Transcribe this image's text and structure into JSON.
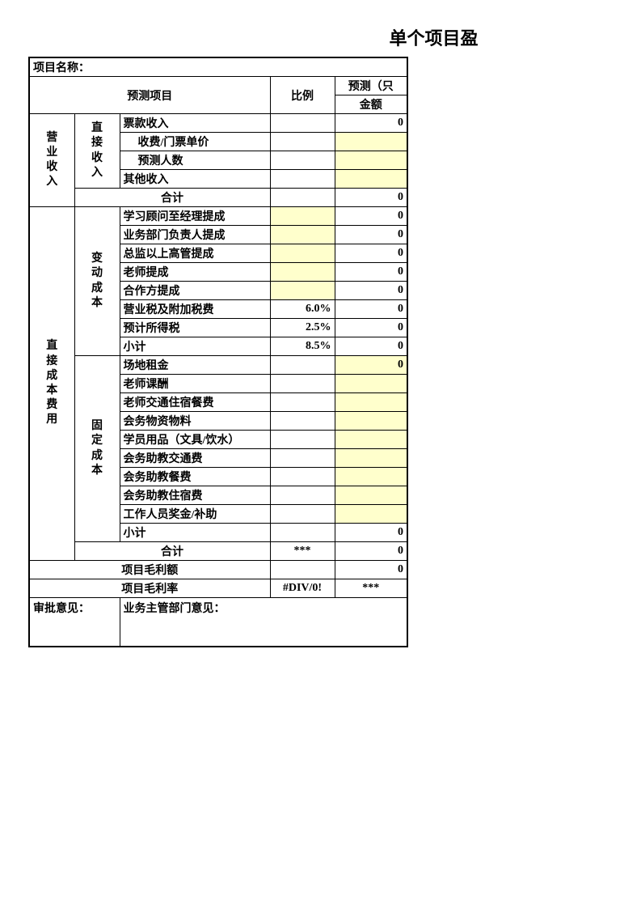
{
  "title": "单个项目盈",
  "project_name_label": "项目名称：",
  "header": {
    "forecast_item": "预测项目",
    "ratio": "比例",
    "forecast_only": "预测（只",
    "amount": "金额"
  },
  "revenue": {
    "section": "营业收入",
    "subsection": "直接收入",
    "rows": [
      {
        "label": "票款收入",
        "ratio": "",
        "amount": "0",
        "yellow_amount": false
      },
      {
        "label": "收费/门票单价",
        "ratio": "",
        "amount": "",
        "yellow_amount": true,
        "indent": true
      },
      {
        "label": "预测人数",
        "ratio": "",
        "amount": "",
        "yellow_amount": true,
        "indent": true
      },
      {
        "label": "其他收入",
        "ratio": "",
        "amount": "",
        "yellow_amount": true
      }
    ],
    "subtotal": {
      "label": "合计",
      "ratio": "",
      "amount": "0"
    }
  },
  "cost": {
    "section": "直接成本费用",
    "variable": {
      "subsection": "变动成本",
      "rows": [
        {
          "label": "学习顾问至经理提成",
          "ratio": "",
          "amount": "0",
          "yellow_ratio": true
        },
        {
          "label": "业务部门负责人提成",
          "ratio": "",
          "amount": "0",
          "yellow_ratio": true
        },
        {
          "label": "总监以上高管提成",
          "ratio": "",
          "amount": "0",
          "yellow_ratio": true
        },
        {
          "label": "老师提成",
          "ratio": "",
          "amount": "0",
          "yellow_ratio": true
        },
        {
          "label": "合作方提成",
          "ratio": "",
          "amount": "0",
          "yellow_ratio": true
        },
        {
          "label": "营业税及附加税费",
          "ratio": "6.0%",
          "amount": "0"
        },
        {
          "label": "预计所得税",
          "ratio": "2.5%",
          "amount": "0"
        }
      ],
      "subtotal": {
        "label": "小计",
        "ratio": "8.5%",
        "amount": "0"
      }
    },
    "fixed": {
      "subsection": "固定成本",
      "rows": [
        {
          "label": "场地租金",
          "ratio": "",
          "amount": "0",
          "yellow_amount": true
        },
        {
          "label": "老师课酬",
          "ratio": "",
          "amount": "",
          "yellow_amount": true
        },
        {
          "label": "老师交通住宿餐费",
          "ratio": "",
          "amount": "",
          "yellow_amount": true
        },
        {
          "label": "会务物资物料",
          "ratio": "",
          "amount": "",
          "yellow_amount": true
        },
        {
          "label": "学员用品（文具/饮水）",
          "ratio": "",
          "amount": "",
          "yellow_amount": true
        },
        {
          "label": "会务助教交通费",
          "ratio": "",
          "amount": "",
          "yellow_amount": true
        },
        {
          "label": "会务助教餐费",
          "ratio": "",
          "amount": "",
          "yellow_amount": true
        },
        {
          "label": "会务助教住宿费",
          "ratio": "",
          "amount": "",
          "yellow_amount": true
        },
        {
          "label": "工作人员奖金/补助",
          "ratio": "",
          "amount": "",
          "yellow_amount": true
        }
      ],
      "subtotal": {
        "label": "小计",
        "ratio": "",
        "amount": "0"
      }
    },
    "total": {
      "label": "合计",
      "ratio": "***",
      "amount": "0"
    }
  },
  "gross_profit": {
    "label": "项目毛利额",
    "ratio": "",
    "amount": "0"
  },
  "gross_margin": {
    "label": "项目毛利率",
    "ratio": "#DIV/0!",
    "amount": "***"
  },
  "approval": {
    "label1": "审批意见：",
    "label2": "业务主管部门意见："
  },
  "colors": {
    "highlight": "#ffffcc",
    "border": "#000000",
    "background": "#ffffff"
  }
}
